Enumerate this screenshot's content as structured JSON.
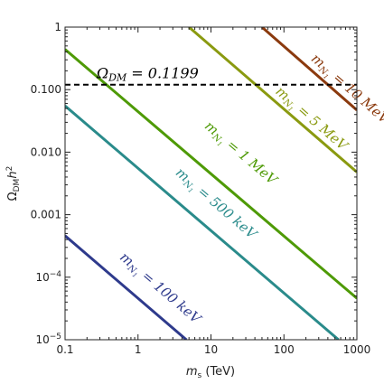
{
  "chart_data": {
    "type": "line",
    "title": "",
    "xlabel": "m_s (TeV)",
    "ylabel": "Ω_DM h^2",
    "x_scale": "log",
    "y_scale": "log",
    "xlim": [
      0.1,
      1000
    ],
    "ylim": [
      1e-05,
      1
    ],
    "x_ticks": [
      {
        "value": 0.1,
        "label": "0.1"
      },
      {
        "value": 1,
        "label": "1"
      },
      {
        "value": 10,
        "label": "10"
      },
      {
        "value": 100,
        "label": "100"
      },
      {
        "value": 1000,
        "label": "1000"
      }
    ],
    "y_ticks": [
      {
        "value": 1e-05,
        "label": "10",
        "exp": "−5"
      },
      {
        "value": 0.0001,
        "label": "10",
        "exp": "−4"
      },
      {
        "value": 0.001,
        "label": "0.001"
      },
      {
        "value": 0.01,
        "label": "0.010"
      },
      {
        "value": 0.1,
        "label": "0.100"
      },
      {
        "value": 1,
        "label": "1"
      }
    ],
    "reference_line": {
      "y": 0.1199,
      "style": "dashed",
      "color": "#000000",
      "label": "Ω_DM = 0.1199"
    },
    "series": [
      {
        "name": "m_N1 = 100 keV",
        "color": "#2e3a8c",
        "x": [
          0.1,
          4.6
        ],
        "y": [
          0.00046,
          1e-05
        ],
        "label_text": "100 keV",
        "label_pos": [
          0.55,
          0.0002
        ]
      },
      {
        "name": "m_N1 = 500 keV",
        "color": "#2a8b8b",
        "x": [
          0.1,
          560
        ],
        "y": [
          0.055,
          1e-05
        ],
        "label_text": "500 keV",
        "label_pos": [
          3.2,
          0.0045
        ]
      },
      {
        "name": "m_N1 = 1 MeV",
        "color": "#4e9a06",
        "x": [
          0.1,
          1000
        ],
        "y": [
          0.44,
          4.6e-05
        ],
        "label_text": "1 MeV",
        "label_pos": [
          8,
          0.025
        ]
      },
      {
        "name": "m_N1 = 5 MeV",
        "color": "#8a9a10",
        "x": [
          5,
          1000
        ],
        "y": [
          1,
          0.0048
        ],
        "label_text": "5 MeV",
        "label_pos": [
          75,
          0.09
        ]
      },
      {
        "name": "m_N1 = 10 MeV",
        "color": "#8b3a0e",
        "x": [
          50,
          1000
        ],
        "y": [
          1,
          0.047
        ],
        "label_text": "10 MeV",
        "label_pos": [
          230,
          0.3
        ]
      }
    ],
    "grid": false,
    "legend": "none"
  }
}
